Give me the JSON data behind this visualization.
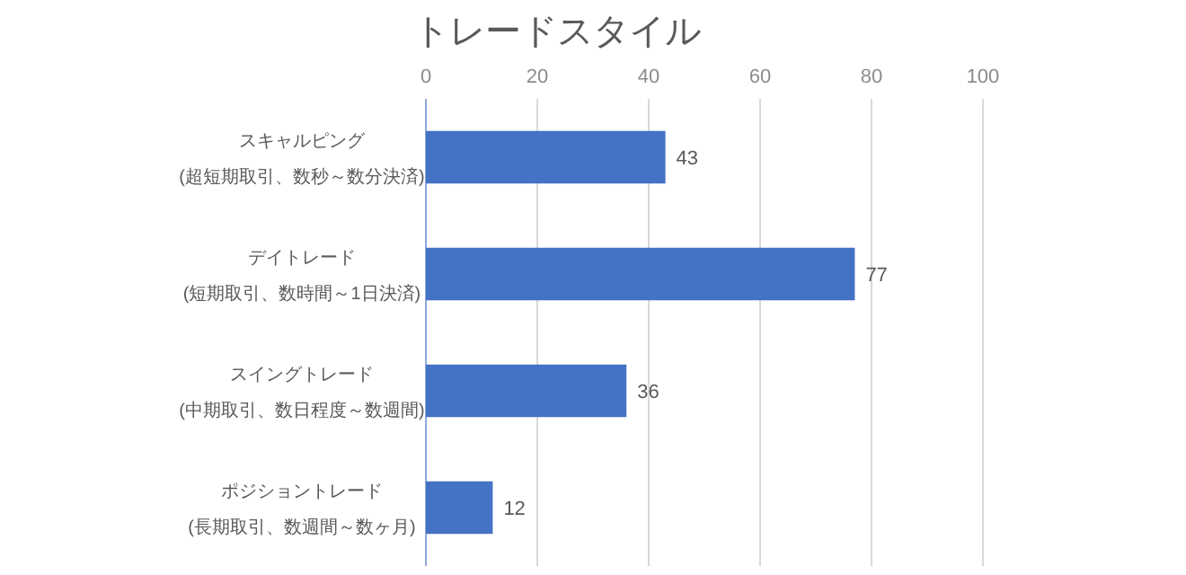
{
  "chart_data": {
    "type": "bar",
    "orientation": "horizontal",
    "title": "トレードスタイル",
    "categories": [
      "スキャルピング\n(超短期取引、数秒～数分決済)",
      "デイトレード\n(短期取引、数時間～1日決済)",
      "スイングトレード\n(中期取引、数日程度～数週間)",
      "ポジショントレード\n(長期取引、数週間～数ヶ月)"
    ],
    "values": [
      43,
      77,
      36,
      12
    ],
    "color": "#4472c4",
    "xlim": [
      0,
      100
    ],
    "xticks": [
      0,
      20,
      40,
      60,
      80,
      100
    ],
    "grid": "x",
    "data_labels": true
  }
}
